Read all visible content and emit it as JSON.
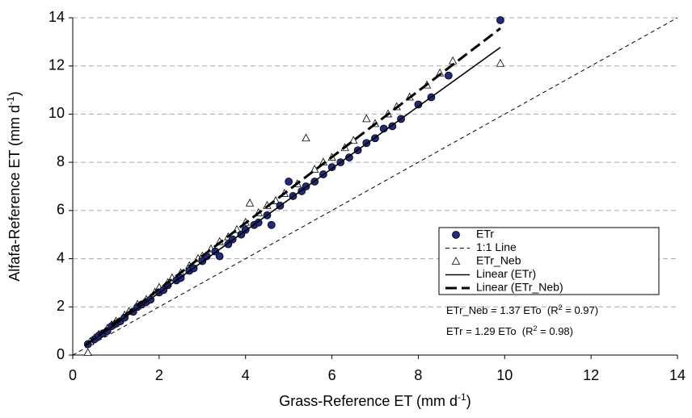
{
  "chart_data": {
    "type": "scatter",
    "xlabel": [
      "Grass-Reference ET (mm d",
      "-1",
      ")"
    ],
    "ylabel": [
      "Alfafa-Reference ET (mm d",
      "-1",
      ")"
    ],
    "xlim": [
      0,
      14
    ],
    "xticks": [
      0,
      2,
      4,
      6,
      8,
      10,
      12,
      14
    ],
    "ylim": [
      0,
      14
    ],
    "yticks": [
      0,
      2,
      4,
      6,
      8,
      10,
      12,
      14
    ],
    "grid": true,
    "legend": "right",
    "annotations": [
      [
        "ETr_Neb = 1.37 ETo  (R",
        "2",
        " = 0.97)"
      ],
      [
        "ETr = 1.29 ETo  (R",
        "2",
        " = 0.98)"
      ]
    ],
    "series": [
      {
        "name": "ETr",
        "type": "scatter",
        "marker": "circle",
        "color": "#1f2a80",
        "x": [
          0.35,
          0.5,
          0.6,
          0.7,
          0.8,
          0.9,
          1.0,
          1.1,
          1.2,
          1.4,
          1.5,
          1.6,
          1.7,
          1.8,
          2.0,
          2.1,
          2.2,
          2.4,
          2.5,
          2.7,
          2.8,
          3.0,
          3.1,
          3.3,
          3.4,
          3.6,
          3.7,
          3.9,
          4.0,
          4.2,
          4.3,
          4.5,
          4.6,
          4.8,
          5.0,
          5.1,
          5.3,
          5.4,
          5.6,
          5.8,
          6.0,
          6.2,
          6.4,
          6.6,
          6.8,
          7.0,
          7.2,
          7.4,
          7.6,
          8.0,
          8.3,
          8.7,
          9.9
        ],
        "values": [
          0.45,
          0.65,
          0.8,
          0.9,
          1.0,
          1.2,
          1.3,
          1.4,
          1.55,
          1.8,
          2.0,
          2.1,
          2.2,
          2.3,
          2.6,
          2.7,
          2.9,
          3.1,
          3.2,
          3.5,
          3.6,
          3.9,
          4.1,
          4.3,
          4.1,
          4.6,
          4.8,
          5.0,
          5.2,
          5.4,
          5.5,
          5.8,
          5.4,
          6.2,
          7.2,
          6.6,
          6.8,
          7.0,
          7.2,
          7.5,
          7.8,
          8.0,
          8.2,
          8.5,
          8.8,
          9.0,
          9.4,
          9.5,
          9.8,
          10.4,
          10.7,
          11.6,
          13.9
        ]
      },
      {
        "name": "1:1 Line",
        "type": "line",
        "dash": "5,4",
        "width": 1,
        "color": "#000000",
        "x": [
          0,
          14
        ],
        "values": [
          0,
          14
        ]
      },
      {
        "name": "ETr_Neb",
        "type": "scatter",
        "marker": "triangle",
        "color": "#ffffff",
        "x": [
          0.35,
          0.4,
          0.5,
          0.6,
          0.8,
          0.9,
          1.0,
          1.2,
          1.3,
          1.5,
          1.7,
          1.9,
          2.0,
          2.2,
          2.3,
          2.5,
          2.7,
          2.9,
          3.0,
          3.2,
          3.4,
          3.6,
          3.8,
          4.0,
          4.1,
          4.3,
          4.5,
          4.7,
          4.9,
          5.2,
          5.4,
          5.6,
          5.8,
          6.0,
          6.3,
          6.5,
          6.8,
          7.0,
          7.3,
          7.5,
          7.8,
          8.2,
          8.5,
          8.8,
          9.9
        ],
        "values": [
          0.1,
          0.55,
          0.7,
          0.85,
          1.1,
          1.25,
          1.4,
          1.65,
          1.8,
          2.1,
          2.3,
          2.6,
          2.8,
          3.0,
          3.2,
          3.4,
          3.7,
          4.0,
          4.1,
          4.4,
          4.7,
          4.9,
          5.2,
          5.5,
          6.3,
          5.9,
          6.2,
          6.4,
          6.7,
          7.1,
          9.0,
          7.7,
          8.0,
          8.2,
          8.6,
          8.9,
          9.8,
          9.6,
          10.0,
          10.3,
          10.7,
          11.2,
          11.7,
          12.2,
          12.1
        ]
      },
      {
        "name": "Linear (ETr)",
        "type": "line",
        "dash": "none",
        "width": 1.6,
        "color": "#000000",
        "x": [
          0.3,
          9.9
        ],
        "values": [
          0.39,
          12.77
        ]
      },
      {
        "name": "Linear (ETr_Neb)",
        "type": "line",
        "dash": "14,6",
        "width": 3,
        "color": "#000000",
        "x": [
          0.3,
          9.9
        ],
        "values": [
          0.41,
          13.56
        ]
      }
    ]
  }
}
